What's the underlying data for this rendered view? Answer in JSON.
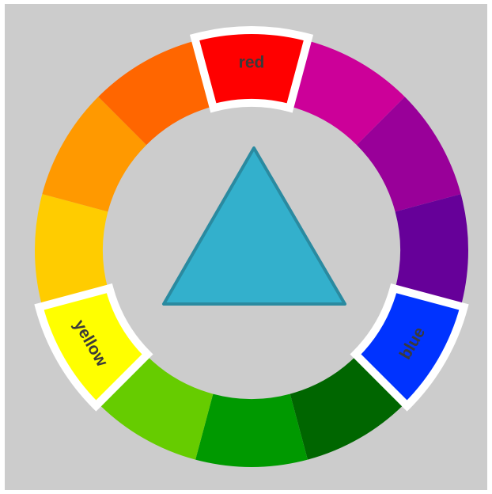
{
  "wheel": {
    "labels": {
      "red": "red",
      "blue": "blue",
      "yellow": "yellow"
    }
  }
}
